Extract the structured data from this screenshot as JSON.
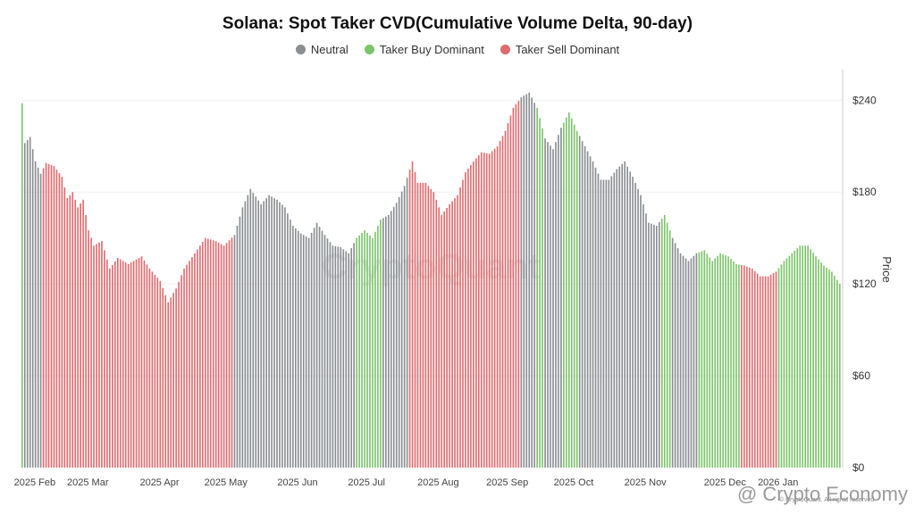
{
  "colors": {
    "neutral": "#8a8d91",
    "buy": "#7cc46a",
    "sell": "#e06a6e"
  },
  "watermark": "CryptoQuant",
  "footer_watermark": "@ Crypto Economy",
  "copyright": "© CryptoQuant. All rights reserved",
  "chart_data": {
    "type": "bar",
    "title": "Solana: Spot Taker CVD(Cumulative Volume Delta, 90-day)",
    "legend": [
      {
        "label": "Neutral",
        "color_key": "neutral"
      },
      {
        "label": "Taker Buy Dominant",
        "color_key": "buy"
      },
      {
        "label": "Taker Sell Dominant",
        "color_key": "sell"
      }
    ],
    "legend_position": "top-center",
    "ylabel": "Price",
    "ylim": [
      0,
      260
    ],
    "yticks": [
      0,
      60,
      120,
      180,
      240
    ],
    "ytick_labels": [
      "$0",
      "$60",
      "$120",
      "$180",
      "$240"
    ],
    "y_axis_side": "right",
    "grid": true,
    "x_range": [
      0,
      309
    ],
    "xticks": [
      {
        "label": "2025 Feb",
        "day": 5
      },
      {
        "label": "2025 Mar",
        "day": 25
      },
      {
        "label": "2025 Apr",
        "day": 52
      },
      {
        "label": "2025 May",
        "day": 77
      },
      {
        "label": "2025 Jun",
        "day": 104
      },
      {
        "label": "2025 Jul",
        "day": 130
      },
      {
        "label": "2025 Aug",
        "day": 157
      },
      {
        "label": "2025 Sep",
        "day": 183
      },
      {
        "label": "2025 Oct",
        "day": 208
      },
      {
        "label": "2025 Nov",
        "day": 235
      },
      {
        "label": "2025 Dec",
        "day": 265
      },
      {
        "label": "2026 Jan",
        "day": 285
      }
    ],
    "price_keypoints": [
      [
        0,
        238
      ],
      [
        1,
        212
      ],
      [
        3,
        216
      ],
      [
        5,
        200
      ],
      [
        7,
        192
      ],
      [
        9,
        199
      ],
      [
        12,
        197
      ],
      [
        15,
        190
      ],
      [
        17,
        176
      ],
      [
        19,
        180
      ],
      [
        21,
        170
      ],
      [
        23,
        175
      ],
      [
        25,
        155
      ],
      [
        27,
        145
      ],
      [
        30,
        148
      ],
      [
        33,
        130
      ],
      [
        36,
        137
      ],
      [
        40,
        133
      ],
      [
        45,
        138
      ],
      [
        48,
        130
      ],
      [
        52,
        122
      ],
      [
        55,
        108
      ],
      [
        58,
        117
      ],
      [
        61,
        130
      ],
      [
        65,
        140
      ],
      [
        69,
        150
      ],
      [
        73,
        148
      ],
      [
        76,
        145
      ],
      [
        80,
        152
      ],
      [
        83,
        170
      ],
      [
        86,
        182
      ],
      [
        90,
        172
      ],
      [
        93,
        178
      ],
      [
        96,
        175
      ],
      [
        99,
        170
      ],
      [
        102,
        158
      ],
      [
        105,
        153
      ],
      [
        108,
        150
      ],
      [
        111,
        160
      ],
      [
        114,
        152
      ],
      [
        117,
        145
      ],
      [
        120,
        144
      ],
      [
        123,
        140
      ],
      [
        126,
        150
      ],
      [
        129,
        155
      ],
      [
        132,
        150
      ],
      [
        135,
        162
      ],
      [
        138,
        165
      ],
      [
        141,
        173
      ],
      [
        144,
        184
      ],
      [
        147,
        200
      ],
      [
        149,
        186
      ],
      [
        152,
        186
      ],
      [
        155,
        180
      ],
      [
        158,
        165
      ],
      [
        161,
        172
      ],
      [
        164,
        178
      ],
      [
        167,
        193
      ],
      [
        170,
        200
      ],
      [
        173,
        206
      ],
      [
        176,
        205
      ],
      [
        179,
        210
      ],
      [
        182,
        220
      ],
      [
        185,
        235
      ],
      [
        188,
        242
      ],
      [
        191,
        245
      ],
      [
        194,
        235
      ],
      [
        197,
        215
      ],
      [
        200,
        208
      ],
      [
        203,
        222
      ],
      [
        206,
        232
      ],
      [
        209,
        220
      ],
      [
        212,
        210
      ],
      [
        215,
        200
      ],
      [
        218,
        188
      ],
      [
        221,
        188
      ],
      [
        224,
        195
      ],
      [
        227,
        200
      ],
      [
        230,
        190
      ],
      [
        233,
        178
      ],
      [
        236,
        160
      ],
      [
        239,
        158
      ],
      [
        242,
        165
      ],
      [
        245,
        150
      ],
      [
        248,
        140
      ],
      [
        251,
        135
      ],
      [
        254,
        140
      ],
      [
        257,
        142
      ],
      [
        260,
        135
      ],
      [
        263,
        140
      ],
      [
        266,
        138
      ],
      [
        269,
        133
      ],
      [
        272,
        132
      ],
      [
        275,
        130
      ],
      [
        278,
        125
      ],
      [
        281,
        125
      ],
      [
        284,
        128
      ],
      [
        287,
        135
      ],
      [
        290,
        140
      ],
      [
        293,
        145
      ],
      [
        296,
        145
      ],
      [
        299,
        138
      ],
      [
        302,
        132
      ],
      [
        305,
        128
      ],
      [
        308,
        120
      ]
    ],
    "regimes": [
      {
        "from": 0,
        "to": 0,
        "state": "buy"
      },
      {
        "from": 1,
        "to": 7,
        "state": "neutral"
      },
      {
        "from": 8,
        "to": 79,
        "state": "sell"
      },
      {
        "from": 80,
        "to": 125,
        "state": "neutral"
      },
      {
        "from": 126,
        "to": 135,
        "state": "buy"
      },
      {
        "from": 136,
        "to": 145,
        "state": "neutral"
      },
      {
        "from": 146,
        "to": 187,
        "state": "sell"
      },
      {
        "from": 188,
        "to": 193,
        "state": "neutral"
      },
      {
        "from": 194,
        "to": 196,
        "state": "buy"
      },
      {
        "from": 197,
        "to": 203,
        "state": "neutral"
      },
      {
        "from": 204,
        "to": 209,
        "state": "buy"
      },
      {
        "from": 210,
        "to": 240,
        "state": "neutral"
      },
      {
        "from": 241,
        "to": 244,
        "state": "buy"
      },
      {
        "from": 245,
        "to": 254,
        "state": "neutral"
      },
      {
        "from": 255,
        "to": 270,
        "state": "buy"
      },
      {
        "from": 271,
        "to": 284,
        "state": "sell"
      },
      {
        "from": 285,
        "to": 308,
        "state": "buy"
      }
    ]
  }
}
